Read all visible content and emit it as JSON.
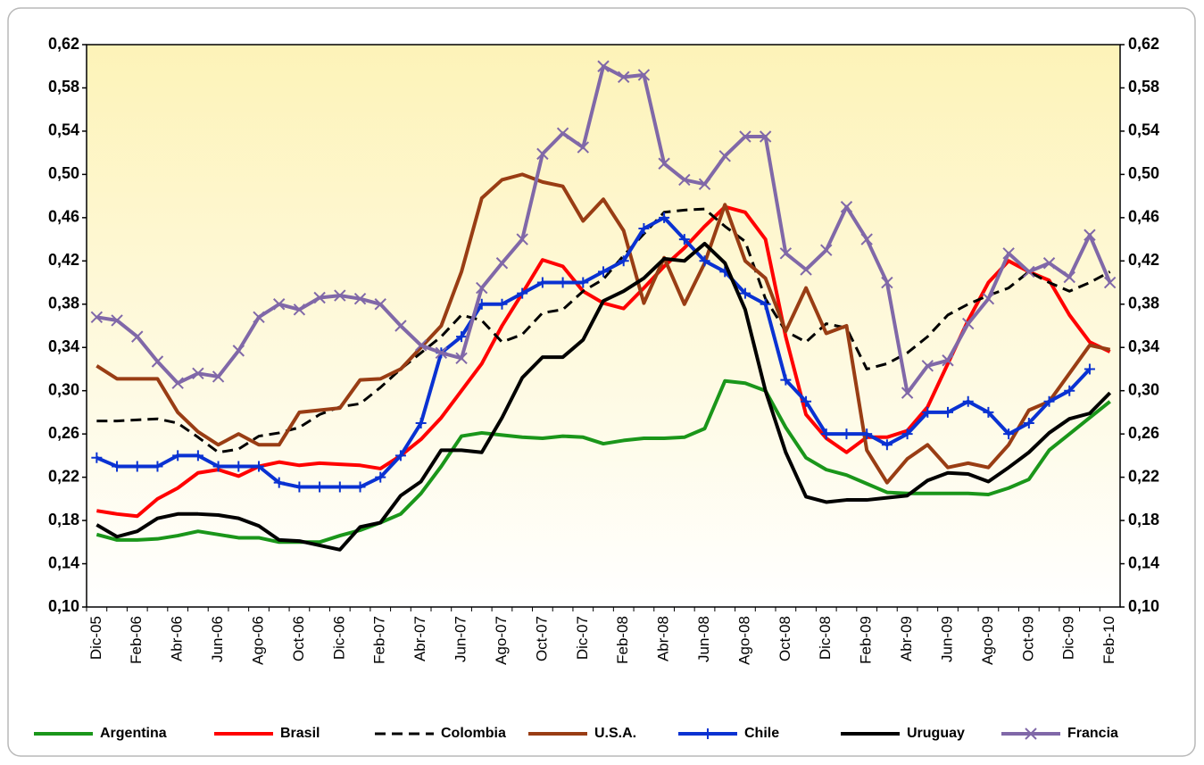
{
  "chart_data": {
    "type": "line",
    "categories": [
      "Dic-05",
      null,
      "Feb-06",
      null,
      "Abr-06",
      null,
      "Jun-06",
      null,
      "Ago-06",
      null,
      "Oct-06",
      null,
      "Dic-06",
      null,
      "Feb-07",
      null,
      "Abr-07",
      null,
      "Jun-07",
      null,
      "Ago-07",
      null,
      "Oct-07",
      null,
      "Dic-07",
      null,
      "Feb-08",
      null,
      "Abr-08",
      null,
      "Jun-08",
      null,
      "Ago-08",
      null,
      "Oct-08",
      null,
      "Dic-08",
      null,
      "Feb-09",
      null,
      "Abr-09",
      null,
      "Jun-09",
      null,
      "Ago-09",
      null,
      "Oct-09",
      null,
      "Dic-09",
      null,
      "Feb-10"
    ],
    "ylim": [
      0.1,
      0.62
    ],
    "yticks": [
      {
        "value": 0.1,
        "label": "0,10"
      },
      {
        "value": 0.14,
        "label": "0,14"
      },
      {
        "value": 0.18,
        "label": "0,18"
      },
      {
        "value": 0.22,
        "label": "0,22"
      },
      {
        "value": 0.26,
        "label": "0,26"
      },
      {
        "value": 0.3,
        "label": "0,30"
      },
      {
        "value": 0.34,
        "label": "0,34"
      },
      {
        "value": 0.38,
        "label": "0,38"
      },
      {
        "value": 0.42,
        "label": "0,42"
      },
      {
        "value": 0.46,
        "label": "0,46"
      },
      {
        "value": 0.5,
        "label": "0,50"
      },
      {
        "value": 0.54,
        "label": "0,54"
      },
      {
        "value": 0.58,
        "label": "0,58"
      },
      {
        "value": 0.62,
        "label": "0,62"
      }
    ],
    "y2lim": [
      0.1,
      0.62
    ],
    "y2ticks": [
      {
        "value": 0.1,
        "label": "0,10"
      },
      {
        "value": 0.14,
        "label": "0,14"
      },
      {
        "value": 0.18,
        "label": "0,18"
      },
      {
        "value": 0.22,
        "label": "0,22"
      },
      {
        "value": 0.26,
        "label": "0,26"
      },
      {
        "value": 0.3,
        "label": "0,30"
      },
      {
        "value": 0.34,
        "label": "0,34"
      },
      {
        "value": 0.38,
        "label": "0,38"
      },
      {
        "value": 0.42,
        "label": "0,42"
      },
      {
        "value": 0.46,
        "label": "0,46"
      },
      {
        "value": 0.5,
        "label": "0,50"
      },
      {
        "value": 0.54,
        "label": "0,54"
      },
      {
        "value": 0.58,
        "label": "0,58"
      },
      {
        "value": 0.62,
        "label": "0,62"
      }
    ],
    "grid": false,
    "legend": "bottom",
    "series": [
      {
        "name": "Argentina",
        "color": "#1a961a",
        "values": [
          0.167,
          0.162,
          0.162,
          0.163,
          0.166,
          0.17,
          0.167,
          0.164,
          0.164,
          0.16,
          0.16,
          0.16,
          0.166,
          0.171,
          0.178,
          0.186,
          0.205,
          0.23,
          0.258,
          0.261,
          0.259,
          0.257,
          0.256,
          0.258,
          0.257,
          0.251,
          0.254,
          0.256,
          0.256,
          0.257,
          0.265,
          0.309,
          0.307,
          0.3,
          0.266,
          0.238,
          0.227,
          0.222,
          0.214,
          0.206,
          0.205,
          0.205,
          0.205,
          0.205,
          0.204,
          0.21,
          0.218,
          0.245,
          0.26,
          0.275,
          0.29
        ]
      },
      {
        "name": "Brasil",
        "color": "#ff0000",
        "values": [
          0.189,
          0.186,
          0.184,
          0.2,
          0.21,
          0.224,
          0.227,
          0.221,
          0.23,
          0.234,
          0.231,
          0.233,
          0.232,
          0.231,
          0.228,
          0.24,
          0.255,
          0.275,
          0.3,
          0.325,
          0.36,
          0.39,
          0.421,
          0.415,
          0.392,
          0.381,
          0.376,
          0.395,
          0.415,
          0.432,
          0.452,
          0.47,
          0.465,
          0.44,
          0.35,
          0.278,
          0.256,
          0.243,
          0.257,
          0.257,
          0.263,
          0.285,
          0.325,
          0.365,
          0.4,
          0.42,
          0.41,
          0.402,
          0.37,
          0.345,
          0.336
        ]
      },
      {
        "name": "Colombia",
        "color": "#000000",
        "dash": "dashed",
        "values": [
          0.272,
          0.272,
          0.273,
          0.274,
          0.27,
          0.257,
          0.243,
          0.246,
          0.258,
          0.261,
          0.266,
          0.278,
          0.285,
          0.288,
          0.303,
          0.32,
          0.335,
          0.35,
          0.37,
          0.365,
          0.345,
          0.352,
          0.372,
          0.375,
          0.392,
          0.403,
          0.425,
          0.445,
          0.465,
          0.467,
          0.468,
          0.452,
          0.438,
          0.385,
          0.355,
          0.345,
          0.362,
          0.358,
          0.32,
          0.325,
          0.335,
          0.35,
          0.37,
          0.38,
          0.388,
          0.395,
          0.41,
          0.4,
          0.392,
          0.4,
          0.41
        ]
      },
      {
        "name": "U.S.A.",
        "color": "#993d14",
        "values": [
          0.323,
          0.311,
          0.311,
          0.311,
          0.28,
          0.262,
          0.25,
          0.26,
          0.25,
          0.25,
          0.28,
          0.282,
          0.284,
          0.31,
          0.311,
          0.32,
          0.34,
          0.36,
          0.41,
          0.478,
          0.495,
          0.5,
          0.493,
          0.489,
          0.457,
          0.477,
          0.448,
          0.381,
          0.423,
          0.38,
          0.418,
          0.472,
          0.42,
          0.404,
          0.355,
          0.395,
          0.353,
          0.36,
          0.245,
          0.215,
          0.237,
          0.25,
          0.229,
          0.233,
          0.229,
          0.25,
          0.282,
          0.29,
          0.316,
          0.342,
          0.338
        ]
      },
      {
        "name": "Chile",
        "color": "#0a32d2",
        "marker": "plus",
        "values": [
          0.238,
          0.23,
          0.23,
          0.23,
          0.24,
          0.24,
          0.23,
          0.23,
          0.23,
          0.215,
          0.211,
          0.211,
          0.211,
          0.211,
          0.22,
          0.24,
          0.27,
          0.335,
          0.35,
          0.38,
          0.38,
          0.39,
          0.4,
          0.4,
          0.4,
          0.41,
          0.42,
          0.45,
          0.46,
          0.44,
          0.42,
          0.41,
          0.39,
          0.38,
          0.31,
          0.29,
          0.26,
          0.26,
          0.26,
          0.25,
          0.26,
          0.28,
          0.28,
          0.29,
          0.28,
          0.26,
          0.27,
          0.29,
          0.3,
          0.32,
          null
        ]
      },
      {
        "name": "Uruguay",
        "color": "#000000",
        "values": [
          0.176,
          0.165,
          0.17,
          0.182,
          0.186,
          0.186,
          0.185,
          0.182,
          0.175,
          0.162,
          0.161,
          0.157,
          0.153,
          0.174,
          0.178,
          0.203,
          0.216,
          0.245,
          0.245,
          0.243,
          0.275,
          0.312,
          0.331,
          0.331,
          0.347,
          0.383,
          0.392,
          0.404,
          0.422,
          0.42,
          0.436,
          0.418,
          0.375,
          0.3,
          0.243,
          0.202,
          0.197,
          0.199,
          0.199,
          0.201,
          0.203,
          0.217,
          0.224,
          0.223,
          0.216,
          0.229,
          0.243,
          0.261,
          0.274,
          0.279,
          0.298
        ]
      },
      {
        "name": "Francia",
        "color": "#8068a8",
        "marker": "x",
        "values": [
          0.368,
          0.365,
          0.35,
          0.327,
          0.307,
          0.316,
          0.313,
          0.337,
          0.368,
          0.38,
          0.375,
          0.386,
          0.388,
          0.385,
          0.38,
          0.36,
          0.342,
          0.335,
          0.33,
          0.395,
          0.418,
          0.44,
          0.519,
          0.538,
          0.525,
          0.6,
          0.59,
          0.592,
          0.51,
          0.495,
          0.491,
          0.517,
          0.535,
          0.535,
          0.427,
          0.412,
          0.43,
          0.47,
          0.44,
          0.4,
          0.298,
          0.323,
          0.328,
          0.362,
          0.385,
          0.427,
          0.41,
          0.418,
          0.405,
          0.444,
          0.4
        ]
      }
    ]
  }
}
